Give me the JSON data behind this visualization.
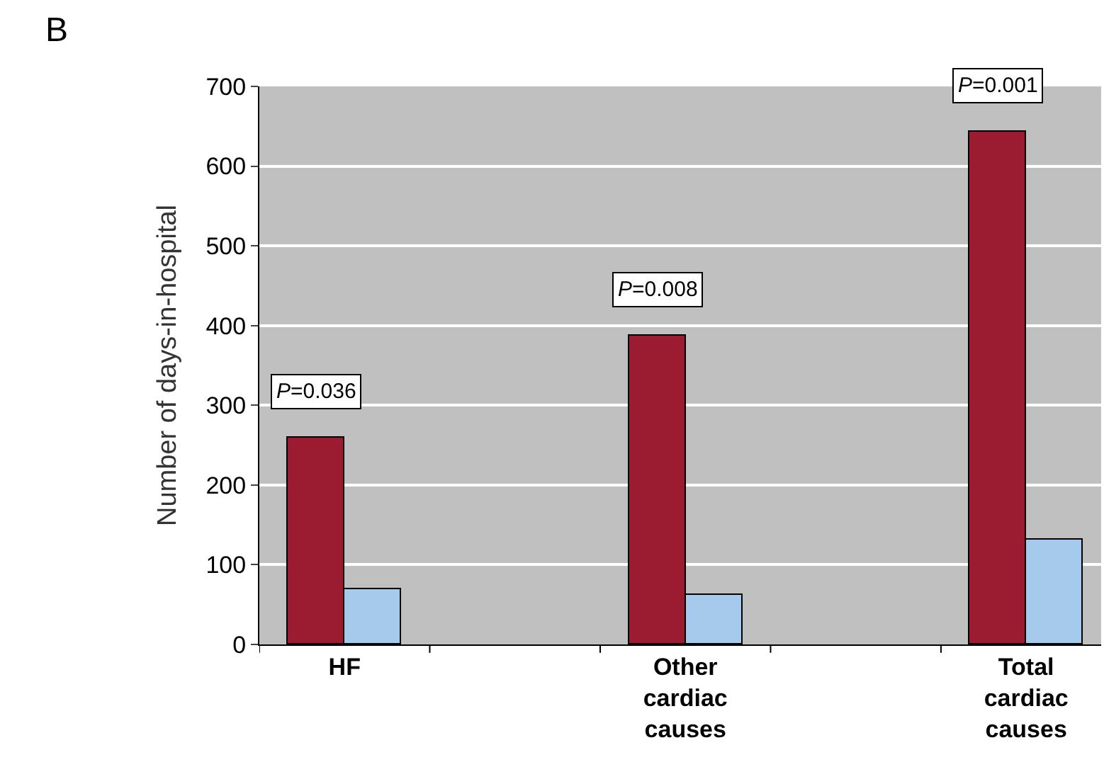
{
  "chart_data": {
    "type": "bar",
    "ylabel": "Number of days-in-hospital",
    "categories": [
      "HF",
      "Other cardiac causes",
      "Total cardiac causes"
    ],
    "series": [
      {
        "color": "#9b1b30",
        "values": [
          259,
          387,
          644
        ]
      },
      {
        "color": "#a6caec",
        "values": [
          70,
          63,
          132
        ]
      }
    ],
    "ylim": [
      0,
      700
    ],
    "yticks": [
      0,
      100,
      200,
      300,
      400,
      500,
      600,
      700
    ],
    "grid": "y",
    "annotations": [
      "B",
      "P=0.036",
      "P=0.008",
      "P=0.001"
    ]
  }
}
